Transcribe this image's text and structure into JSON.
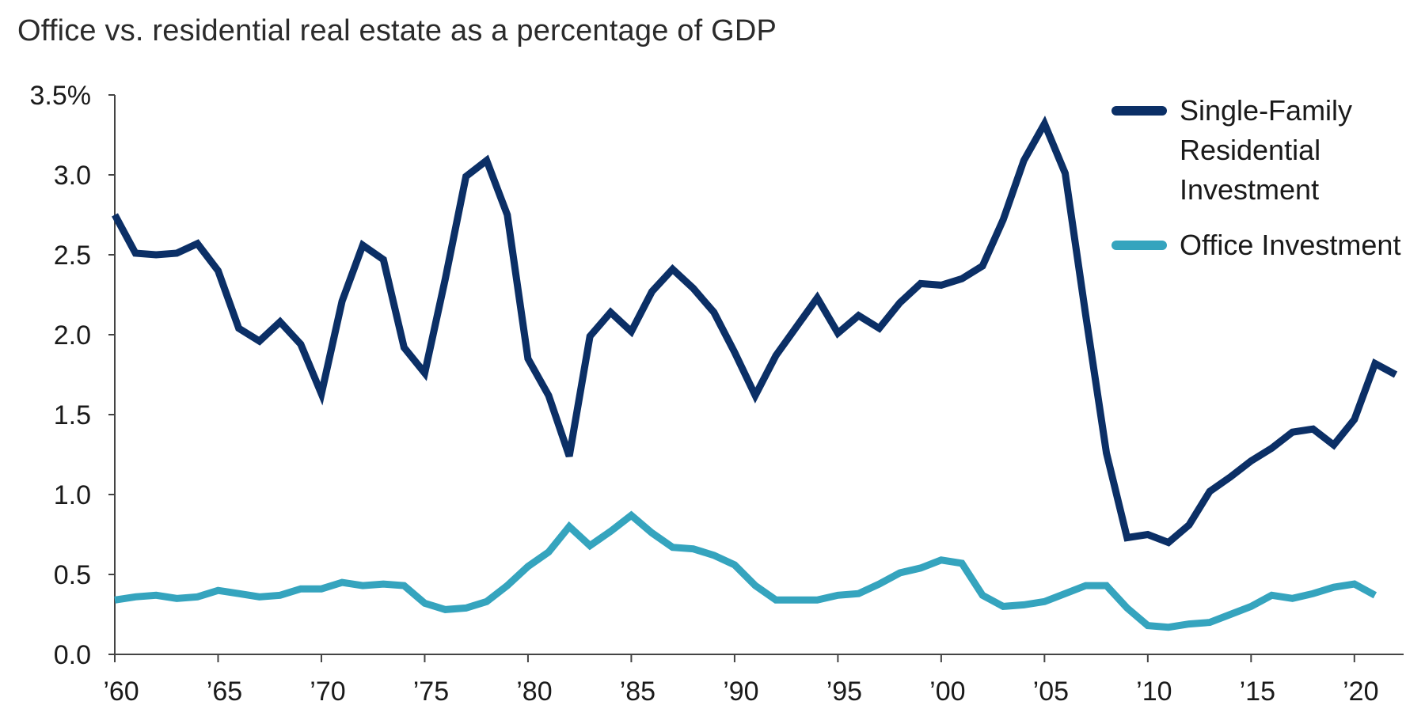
{
  "chart_data": {
    "type": "line",
    "title": "Office vs. residential real estate as a percentage of GDP",
    "xlabel": "",
    "ylabel": "",
    "xlim": [
      1960,
      2022
    ],
    "ylim": [
      0,
      3.5
    ],
    "y_ticks": [
      {
        "value": 3.5,
        "label": "3.5%"
      },
      {
        "value": 3.0,
        "label": "3.0"
      },
      {
        "value": 2.5,
        "label": "2.5"
      },
      {
        "value": 2.0,
        "label": "2.0"
      },
      {
        "value": 1.5,
        "label": "1.5"
      },
      {
        "value": 1.0,
        "label": "1.0"
      },
      {
        "value": 0.5,
        "label": "0.5"
      },
      {
        "value": 0.0,
        "label": "0.0"
      }
    ],
    "x_ticks": [
      {
        "value": 1960,
        "label": "’60"
      },
      {
        "value": 1965,
        "label": "’65"
      },
      {
        "value": 1970,
        "label": "’70"
      },
      {
        "value": 1975,
        "label": "’75"
      },
      {
        "value": 1980,
        "label": "’80"
      },
      {
        "value": 1985,
        "label": "’85"
      },
      {
        "value": 1990,
        "label": "’90"
      },
      {
        "value": 1995,
        "label": "’95"
      },
      {
        "value": 2000,
        "label": "’00"
      },
      {
        "value": 2005,
        "label": "’05"
      },
      {
        "value": 2010,
        "label": "’10"
      },
      {
        "value": 2015,
        "label": "’15"
      },
      {
        "value": 2020,
        "label": "’20"
      }
    ],
    "legend_position": "top-right",
    "grid": false,
    "x": [
      1960,
      1961,
      1962,
      1963,
      1964,
      1965,
      1966,
      1967,
      1968,
      1969,
      1970,
      1971,
      1972,
      1973,
      1974,
      1975,
      1976,
      1977,
      1978,
      1979,
      1980,
      1981,
      1982,
      1983,
      1984,
      1985,
      1986,
      1987,
      1988,
      1989,
      1990,
      1991,
      1992,
      1993,
      1994,
      1995,
      1996,
      1997,
      1998,
      1999,
      2000,
      2001,
      2002,
      2003,
      2004,
      2005,
      2006,
      2007,
      2008,
      2009,
      2010,
      2011,
      2012,
      2013,
      2014,
      2015,
      2016,
      2017,
      2018,
      2019,
      2020,
      2021,
      2022
    ],
    "series": [
      {
        "name": "Single-Family Residential Investment",
        "legend_lines": [
          "Single-Family",
          "Residential",
          "Investment"
        ],
        "color": "#0b2f66",
        "values": [
          2.75,
          2.51,
          2.5,
          2.51,
          2.57,
          2.4,
          2.04,
          1.96,
          2.08,
          1.94,
          1.63,
          2.21,
          2.56,
          2.47,
          1.92,
          1.76,
          2.35,
          2.99,
          3.09,
          2.75,
          1.85,
          1.62,
          1.24,
          1.99,
          2.14,
          2.02,
          2.27,
          2.41,
          2.29,
          2.14,
          1.89,
          1.62,
          1.87,
          2.05,
          2.23,
          2.01,
          2.12,
          2.04,
          2.2,
          2.32,
          2.31,
          2.35,
          2.43,
          2.72,
          3.09,
          3.32,
          3.01,
          2.12,
          1.26,
          0.73,
          0.75,
          0.7,
          0.81,
          1.02,
          1.11,
          1.21,
          1.29,
          1.39,
          1.41,
          1.31,
          1.47,
          1.82,
          1.75
        ]
      },
      {
        "name": "Office Investment",
        "legend_lines": [
          "Office Investment"
        ],
        "color": "#35a4be",
        "values": [
          0.34,
          0.36,
          0.37,
          0.35,
          0.36,
          0.4,
          0.38,
          0.36,
          0.37,
          0.41,
          0.41,
          0.45,
          0.43,
          0.44,
          0.43,
          0.32,
          0.28,
          0.29,
          0.33,
          0.43,
          0.55,
          0.64,
          0.8,
          0.68,
          0.77,
          0.87,
          0.76,
          0.67,
          0.66,
          0.62,
          0.56,
          0.43,
          0.34,
          0.34,
          0.34,
          0.37,
          0.38,
          0.44,
          0.51,
          0.54,
          0.59,
          0.57,
          0.37,
          0.3,
          0.31,
          0.33,
          0.38,
          0.43,
          0.43,
          0.29,
          0.18,
          0.17,
          0.19,
          0.2,
          0.25,
          0.3,
          0.37,
          0.35,
          0.38,
          0.42,
          0.44,
          0.37,
          null
        ]
      }
    ]
  }
}
